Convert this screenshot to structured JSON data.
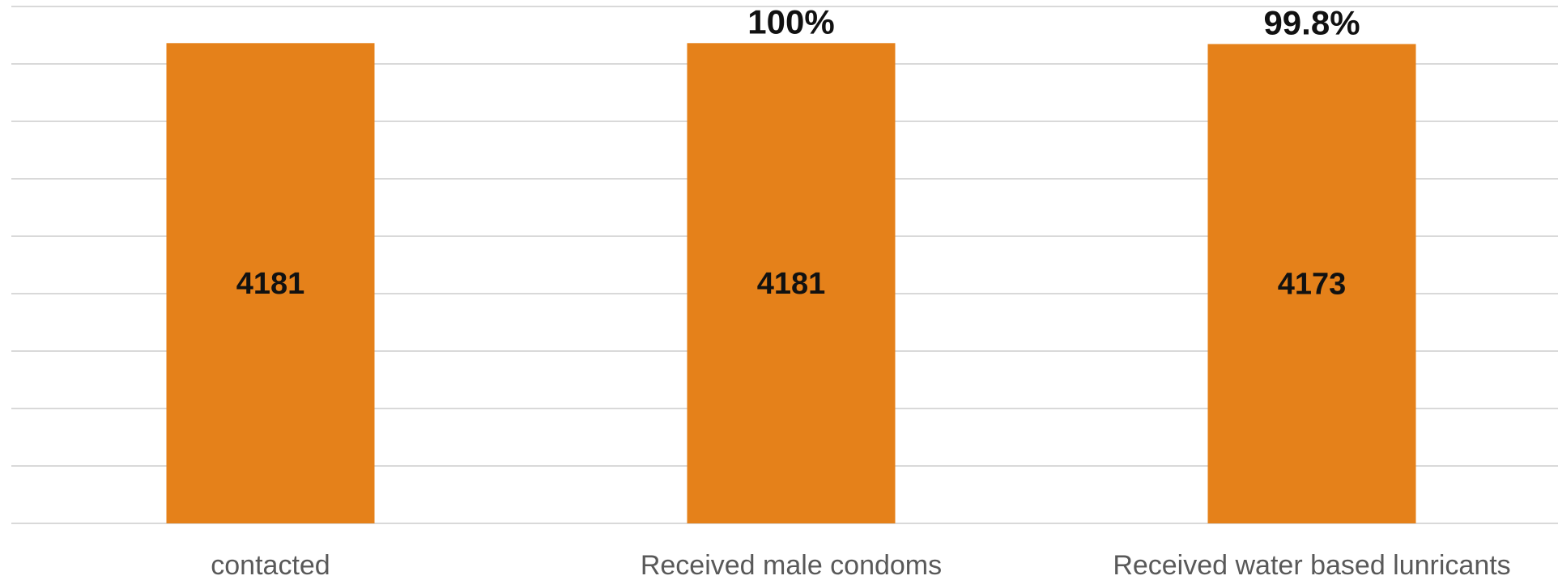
{
  "chart_data": {
    "type": "bar",
    "title": "",
    "xlabel": "",
    "ylabel": "",
    "categories": [
      "contacted",
      "Received male condoms",
      "Received water based lunricants"
    ],
    "values": [
      4181,
      4181,
      4173
    ],
    "percent_labels": [
      "",
      "100%",
      "99.8%"
    ],
    "ylim": [
      0,
      4500
    ],
    "grid": true,
    "legend": "none",
    "bar_color": "#E5811A"
  }
}
